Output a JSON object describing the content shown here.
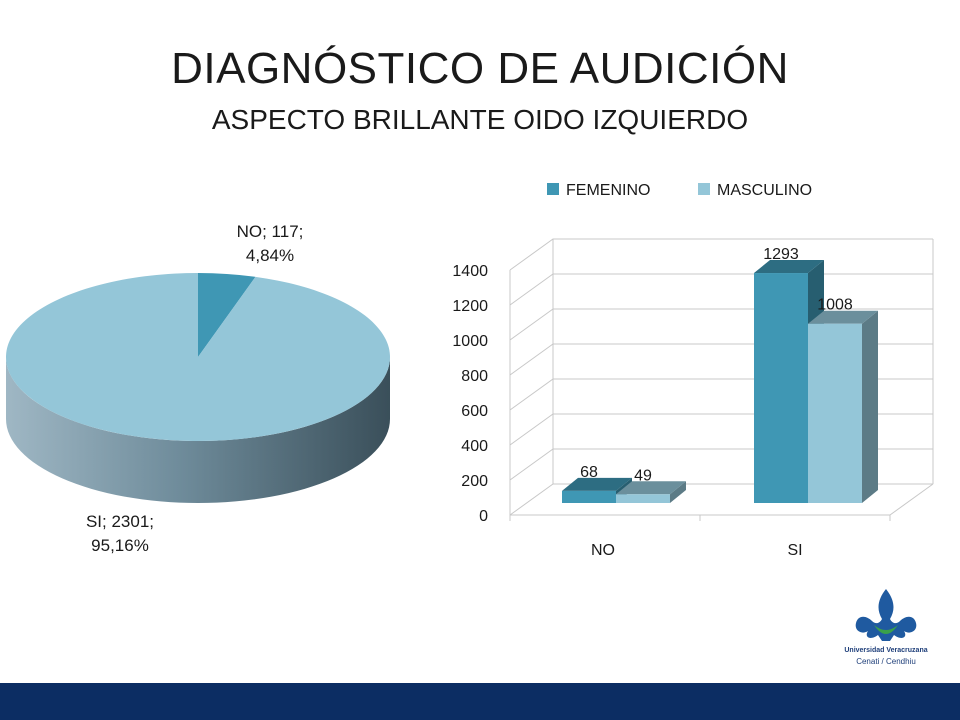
{
  "title": "DIAGNÓSTICO DE AUDICIÓN",
  "subtitle": "ASPECTO BRILLANTE OIDO IZQUIERDO",
  "logo": {
    "line1": "Universidad Veracruzana",
    "line2": "Cenati / Cendhiu"
  },
  "colors": {
    "femenino": "#3f97b4",
    "masculino": "#94c6d8",
    "footer": "#0c2d63"
  },
  "chart_data": [
    {
      "type": "pie",
      "style": "3d",
      "slices": [
        {
          "label": "NO",
          "value": 117,
          "percent": "4,84%",
          "display": [
            "NO; 117;",
            "4,84%"
          ],
          "color": "#3f97b4"
        },
        {
          "label": "SI",
          "value": 2301,
          "percent": "95,16%",
          "display": [
            "SI; 2301;",
            "95,16%"
          ],
          "color": "#94c6d8"
        }
      ]
    },
    {
      "type": "bar",
      "style": "3d",
      "categories": [
        "NO",
        "SI"
      ],
      "series": [
        {
          "name": "FEMENINO",
          "values": [
            68,
            1293
          ],
          "color": "#3f97b4"
        },
        {
          "name": "MASCULINO",
          "values": [
            49,
            1008
          ],
          "color": "#94c6d8"
        }
      ],
      "yticks": [
        0,
        200,
        400,
        600,
        800,
        1000,
        1200,
        1400
      ],
      "ylim": [
        0,
        1400
      ],
      "legend": "top",
      "grid": true
    }
  ]
}
